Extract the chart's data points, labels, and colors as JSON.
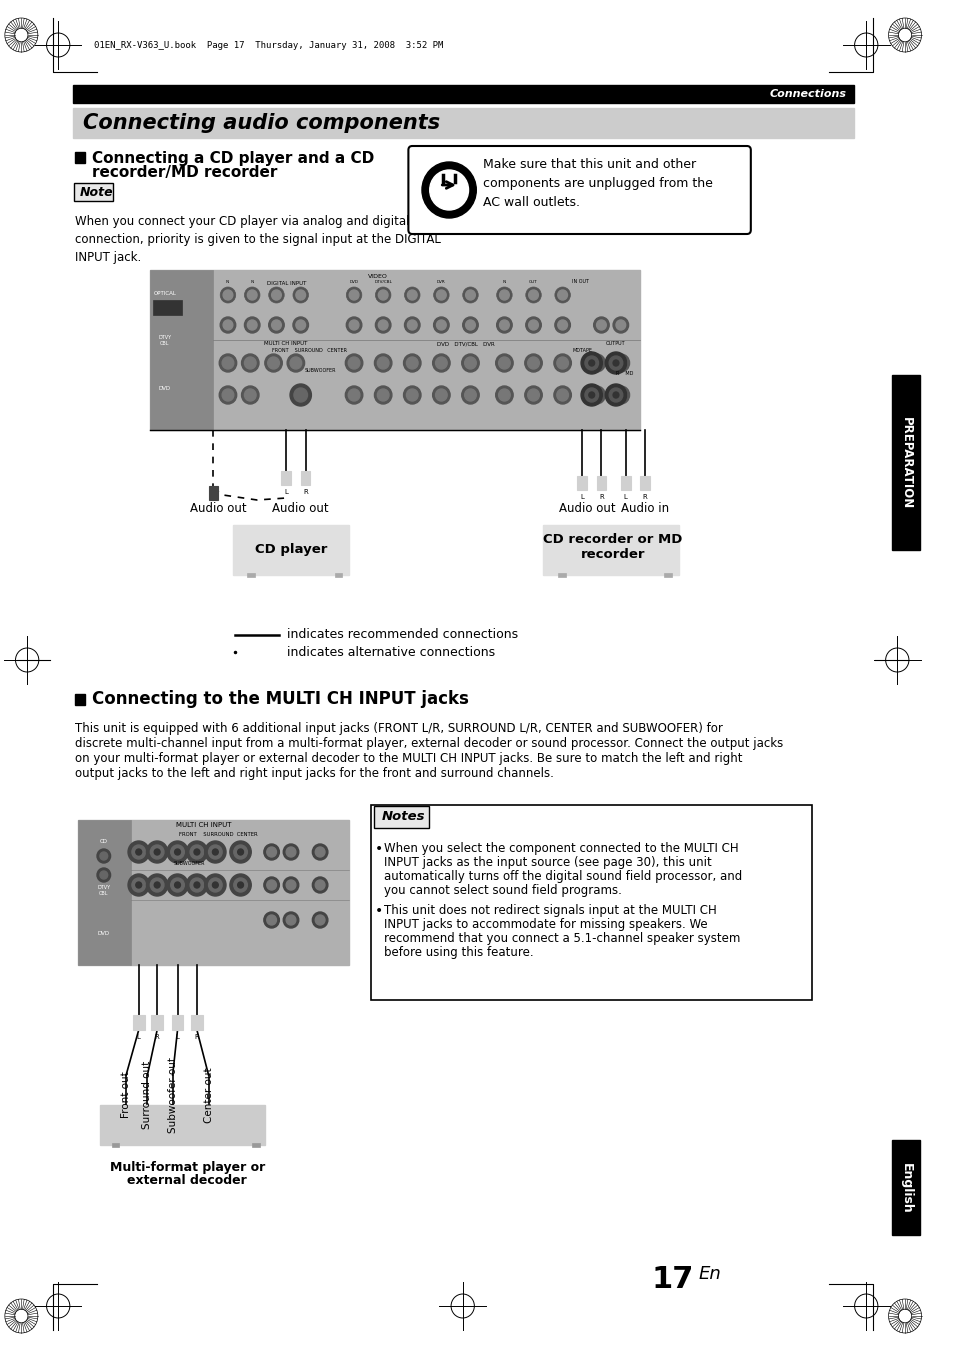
{
  "page_file_text": "01EN_RX-V363_U.book  Page 17  Thursday, January 31, 2008  3:52 PM",
  "section_label": "Connections",
  "main_title": "Connecting audio components",
  "section1_title_line1": "Connecting a CD player and a CD",
  "section1_title_line2": "recorder/MD recorder",
  "note_label": "Note",
  "note_text": "When you connect your CD player via analog and digital\nconnection, priority is given to the signal input at the DIGITAL\nINPUT jack.",
  "warning_text": "Make sure that this unit and other\ncomponents are unplugged from the\nAC wall outlets.",
  "legend_solid": "indicates recommended connections",
  "legend_dotted": "indicates alternative connections",
  "cd_player_label": "CD player",
  "cd_recorder_label": "CD recorder or MD\nrecorder",
  "audio_out1": "Audio out",
  "audio_out2": "Audio out",
  "audio_out3": "Audio out",
  "audio_in1": "Audio in",
  "section2_title": "Connecting to the MULTI CH INPUT jacks",
  "section2_body1": "This unit is equipped with 6 additional input jacks (FRONT L/R, SURROUND L/R, CENTER and SUBWOOFER) for",
  "section2_body2": "discrete multi-channel input from a multi-format player, external decoder or sound processor. Connect the output jacks",
  "section2_body3": "on your multi-format player or external decoder to the MULTI CH INPUT jacks. Be sure to match the left and right",
  "section2_body4": "output jacks to the left and right input jacks for the front and surround channels.",
  "notes_label": "Notes",
  "note2_bullet1_lines": [
    "When you select the component connected to the MULTI CH",
    "INPUT jacks as the input source (see page 30), this unit",
    "automatically turns off the digital sound field processor, and",
    "you cannot select sound field programs."
  ],
  "note2_bullet2_lines": [
    "This unit does not redirect signals input at the MULTI CH",
    "INPUT jacks to accommodate for missing speakers. We",
    "recommend that you connect a 5.1-channel speaker system",
    "before using this feature."
  ],
  "multi_format_label_line1": "Multi-format player or",
  "multi_format_label_line2": "external decoder",
  "front_out_label": "Front out",
  "surround_out_label": "Surround out",
  "subwoofer_out_label": "Subwoofer out",
  "center_out_label": "Center out",
  "page_number": "17",
  "page_number_sub": "En",
  "preparation_label": "PREPARATION",
  "english_label": "English",
  "bg_color": "#ffffff",
  "section_bg": "#cccccc",
  "header_bg": "#000000",
  "header_fg": "#ffffff",
  "sidebar_bg": "#000000",
  "sidebar_fg": "#ffffff"
}
